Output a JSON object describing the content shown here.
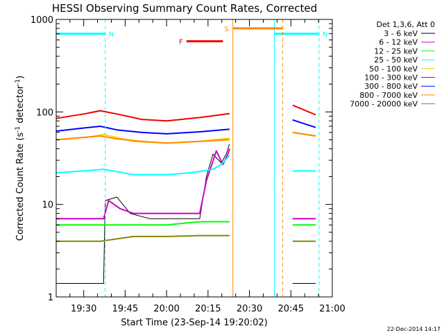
{
  "chart_data": {
    "type": "line",
    "title": "HESSI Observing Summary Count Rates, Corrected",
    "xlabel": "Start Time (23-Sep-14 19:20:02)",
    "ylabel": "Corrected Count Rate (s",
    "ylabel_sup": "-1",
    "ylabel_tail": " detector",
    "ylabel_tail_sup": "-1",
    "ylabel_end": ")",
    "y_scale": "log",
    "ylim": [
      1,
      1000
    ],
    "xlim": [
      19.3339,
      21.0
    ],
    "x_ticks": [
      {
        "value": 19.5,
        "label": "19:30"
      },
      {
        "value": 19.75,
        "label": "19:45"
      },
      {
        "value": 20.0,
        "label": "20:00"
      },
      {
        "value": 20.25,
        "label": "20:15"
      },
      {
        "value": 20.5,
        "label": "20:30"
      },
      {
        "value": 20.75,
        "label": "20:45"
      },
      {
        "value": 21.0,
        "label": "21:00"
      }
    ],
    "y_ticks": [
      {
        "value": 1,
        "label": "1"
      },
      {
        "value": 10,
        "label": "10"
      },
      {
        "value": 100,
        "label": "100"
      },
      {
        "value": 1000,
        "label": "1000"
      }
    ],
    "legend_title": "Det 1,3,6, Att 0",
    "legend_position": "right",
    "timestamp": "22-Dec-2014 14:17",
    "series": [
      {
        "name": "3 - 6 keV",
        "color": "#000000",
        "values": [
          [
            19.3339,
            1.4
          ],
          [
            19.62,
            1.4
          ],
          [
            19.63,
            11
          ],
          [
            19.7,
            12
          ],
          [
            19.78,
            8
          ],
          [
            19.9,
            7
          ],
          [
            20.05,
            7
          ],
          [
            20.2,
            7
          ],
          [
            20.24,
            20
          ],
          [
            20.28,
            35
          ],
          [
            20.33,
            28
          ],
          [
            20.36,
            35
          ],
          [
            20.38,
            45
          ],
          [
            20.74,
            null
          ],
          [
            20.76,
            1.4
          ],
          [
            20.9,
            1.4
          ]
        ]
      },
      {
        "name": "6 - 12 keV",
        "color": "#cc00cc",
        "values": [
          [
            19.3339,
            7
          ],
          [
            19.62,
            7
          ],
          [
            19.65,
            11
          ],
          [
            19.72,
            9
          ],
          [
            19.8,
            8
          ],
          [
            19.95,
            8
          ],
          [
            20.1,
            8
          ],
          [
            20.2,
            8
          ],
          [
            20.24,
            18
          ],
          [
            20.3,
            38
          ],
          [
            20.34,
            27
          ],
          [
            20.37,
            35
          ],
          [
            20.38,
            40
          ],
          [
            20.74,
            null
          ],
          [
            20.76,
            7
          ],
          [
            20.9,
            7
          ]
        ]
      },
      {
        "name": "12 - 25 keV",
        "color": "#00ff00",
        "values": [
          [
            19.3339,
            6
          ],
          [
            19.6,
            6
          ],
          [
            19.8,
            6
          ],
          [
            20.0,
            6
          ],
          [
            20.2,
            6.5
          ],
          [
            20.38,
            6.5
          ],
          [
            20.74,
            null
          ],
          [
            20.76,
            6
          ],
          [
            20.9,
            6
          ]
        ]
      },
      {
        "name": "25 - 50 keV",
        "color": "#00ffff",
        "values": [
          [
            19.3339,
            22
          ],
          [
            19.5,
            23
          ],
          [
            19.62,
            24
          ],
          [
            19.8,
            21
          ],
          [
            20.0,
            21
          ],
          [
            20.15,
            22
          ],
          [
            20.28,
            24
          ],
          [
            20.33,
            27
          ],
          [
            20.38,
            34
          ],
          [
            20.74,
            null
          ],
          [
            20.76,
            23
          ],
          [
            20.9,
            23
          ]
        ]
      },
      {
        "name": "50 - 100 keV",
        "color": "#ffcc00",
        "values": [
          [
            19.3339,
            50
          ],
          [
            19.55,
            54
          ],
          [
            19.62,
            57
          ],
          [
            19.8,
            48
          ],
          [
            20.0,
            46
          ],
          [
            20.2,
            48
          ],
          [
            20.38,
            52
          ],
          [
            20.74,
            null
          ],
          [
            20.76,
            60
          ],
          [
            20.9,
            55
          ]
        ]
      },
      {
        "name": "100 - 300 keV",
        "color": "#ee0000",
        "values": [
          [
            19.3339,
            85
          ],
          [
            19.5,
            95
          ],
          [
            19.6,
            103
          ],
          [
            19.7,
            95
          ],
          [
            19.85,
            83
          ],
          [
            20.0,
            80
          ],
          [
            20.2,
            87
          ],
          [
            20.38,
            96
          ],
          [
            20.74,
            null
          ],
          [
            20.76,
            118
          ],
          [
            20.9,
            93
          ]
        ]
      },
      {
        "name": "300 - 800 keV",
        "color": "#0000ff",
        "values": [
          [
            19.3339,
            62
          ],
          [
            19.5,
            67
          ],
          [
            19.6,
            70
          ],
          [
            19.7,
            64
          ],
          [
            19.85,
            60
          ],
          [
            20.0,
            58
          ],
          [
            20.2,
            61
          ],
          [
            20.38,
            65
          ],
          [
            20.74,
            null
          ],
          [
            20.76,
            82
          ],
          [
            20.9,
            68
          ]
        ]
      },
      {
        "name": "800 - 7000 keV",
        "color": "#ff8800",
        "values": [
          [
            19.3339,
            50
          ],
          [
            19.5,
            53
          ],
          [
            19.6,
            55
          ],
          [
            19.7,
            51
          ],
          [
            19.85,
            48
          ],
          [
            20.0,
            46
          ],
          [
            20.2,
            48
          ],
          [
            20.38,
            50
          ],
          [
            20.74,
            null
          ],
          [
            20.76,
            60
          ],
          [
            20.9,
            55
          ]
        ]
      },
      {
        "name": "7000 - 20000 keV",
        "color": "#888800",
        "values": [
          [
            19.3339,
            4
          ],
          [
            19.6,
            4
          ],
          [
            19.8,
            4.5
          ],
          [
            20.0,
            4.5
          ],
          [
            20.2,
            4.6
          ],
          [
            20.38,
            4.6
          ],
          [
            20.74,
            null
          ],
          [
            20.76,
            4
          ],
          [
            20.9,
            4
          ]
        ]
      }
    ],
    "annotations": [
      {
        "label": "N",
        "color": "#00ffff",
        "y": 700,
        "x_start": 19.3339,
        "x_end": 19.63,
        "dashed_x": 19.63
      },
      {
        "label": "N",
        "color": "#00ffff",
        "y": 700,
        "x_start": 20.65,
        "x_end": 20.92,
        "solid_x": 20.65,
        "dashed_x": 20.92
      },
      {
        "label": "S",
        "color": "#ff8800",
        "y": 800,
        "x_start": 20.4,
        "x_end": 20.7,
        "solid_x": 20.4,
        "dashed_x": 20.7
      },
      {
        "label": "F",
        "color": "#ee0000",
        "y": 580,
        "x_start": 20.12,
        "x_end": 20.34
      }
    ]
  }
}
